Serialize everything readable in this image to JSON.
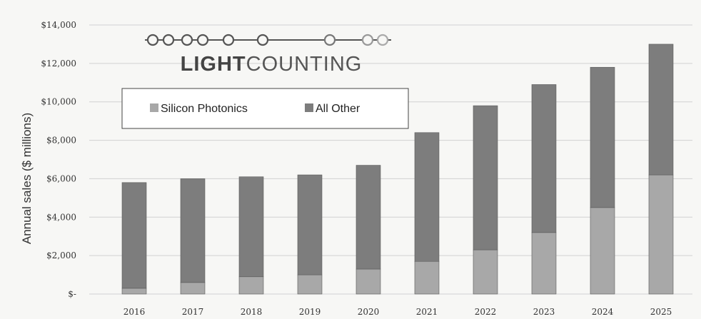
{
  "logo": {
    "bold": "LIGHT",
    "light": "COUNTING"
  },
  "colors": {
    "silicon_photonics": "#a8a8a8",
    "all_other": "#7d7d7d",
    "background": "#f7f7f5",
    "grid": "#d2d2d2"
  },
  "chart_data": {
    "type": "bar",
    "stacked": true,
    "title": "",
    "xlabel": "",
    "ylabel": "Annual sales ($ millions)",
    "ylim": [
      0,
      14000
    ],
    "yticks": [
      0,
      2000,
      4000,
      6000,
      8000,
      10000,
      12000,
      14000
    ],
    "ytick_labels": [
      "$-",
      "$2,000",
      "$4,000",
      "$6,000",
      "$8,000",
      "$10,000",
      "$12,000",
      "$14,000"
    ],
    "categories": [
      "2016",
      "2017",
      "2018",
      "2019",
      "2020",
      "2021",
      "2022",
      "2023",
      "2024",
      "2025"
    ],
    "series": [
      {
        "name": "Silicon Photonics",
        "values": [
          300,
          600,
          900,
          1000,
          1300,
          1700,
          2300,
          3200,
          4500,
          6200
        ]
      },
      {
        "name": "All Other",
        "values": [
          5500,
          5400,
          5200,
          5200,
          5400,
          6700,
          7500,
          7700,
          7300,
          6800
        ]
      }
    ],
    "grid": true,
    "legend_position": "top-left"
  }
}
